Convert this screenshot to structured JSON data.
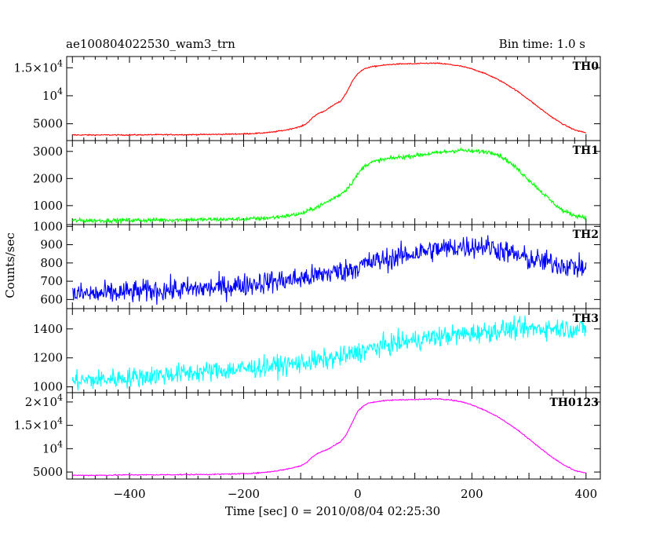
{
  "header": {
    "title": "ae100804022530_wam3_trn",
    "bin_time": "Bin time: 1.0 s"
  },
  "chart_data": {
    "type": "line",
    "xlabel": "Time [sec] 0 = 2010/08/04 02:25:30",
    "ylabel": "Counts/sec",
    "xlim": [
      -510,
      425
    ],
    "xticks": [
      -400,
      -200,
      0,
      200,
      400
    ],
    "x_tick_labels": [
      "−400",
      "−200",
      "0",
      "200",
      "400"
    ],
    "x": [
      -500,
      -450,
      -400,
      -350,
      -300,
      -250,
      -200,
      -175,
      -150,
      -125,
      -100,
      -90,
      -80,
      -70,
      -60,
      -50,
      -40,
      -30,
      -20,
      -10,
      0,
      10,
      20,
      40,
      60,
      80,
      100,
      120,
      140,
      160,
      180,
      200,
      220,
      240,
      260,
      280,
      300,
      320,
      340,
      360,
      380,
      400
    ],
    "panels": [
      {
        "name": "TH0",
        "color": "#ff0000",
        "ylim": [
          2000,
          17000
        ],
        "yticks": [
          5000,
          10000,
          15000
        ],
        "ytick_labels": [
          {
            "base": "5000"
          },
          {
            "base": "10",
            "exp": "4"
          },
          {
            "base": "1.5×10",
            "exp": "4"
          }
        ],
        "noise": 70,
        "values": [
          3000,
          3000,
          3000,
          3050,
          3050,
          3100,
          3200,
          3300,
          3500,
          3900,
          4500,
          5000,
          6000,
          6800,
          7200,
          7800,
          8500,
          9000,
          10500,
          12500,
          14000,
          14700,
          15100,
          15400,
          15600,
          15700,
          15700,
          15800,
          15800,
          15600,
          15300,
          14800,
          14100,
          13200,
          12100,
          10800,
          9300,
          7700,
          6200,
          4900,
          3900,
          3400
        ]
      },
      {
        "name": "TH1",
        "color": "#00ff00",
        "ylim": [
          300,
          3400
        ],
        "yticks": [
          1000,
          2000,
          3000
        ],
        "ytick_labels": [
          {
            "base": "1000"
          },
          {
            "base": "2000"
          },
          {
            "base": "3000"
          }
        ],
        "noise": 55,
        "values": [
          450,
          450,
          460,
          470,
          480,
          490,
          500,
          520,
          560,
          620,
          700,
          780,
          880,
          960,
          1060,
          1180,
          1300,
          1420,
          1600,
          1850,
          2150,
          2420,
          2570,
          2680,
          2750,
          2800,
          2850,
          2900,
          2950,
          3000,
          3050,
          3000,
          3000,
          2950,
          2700,
          2350,
          1950,
          1550,
          1150,
          800,
          640,
          560
        ]
      },
      {
        "name": "TH2",
        "color": "#0000ff",
        "ylim": [
          550,
          1010
        ],
        "yticks": [
          600,
          700,
          800,
          900,
          1000
        ],
        "ytick_labels": [
          {
            "base": "600"
          },
          {
            "base": "700"
          },
          {
            "base": "800"
          },
          {
            "base": "900"
          },
          {
            "base": "1000"
          }
        ],
        "noise": 45,
        "values": [
          630,
          630,
          640,
          650,
          655,
          665,
          680,
          690,
          700,
          705,
          715,
          720,
          725,
          730,
          740,
          745,
          750,
          755,
          760,
          770,
          780,
          790,
          800,
          815,
          825,
          840,
          855,
          865,
          875,
          880,
          890,
          890,
          895,
          880,
          860,
          840,
          820,
          810,
          800,
          790,
          780,
          770
        ]
      },
      {
        "name": "TH3",
        "color": "#00ffff",
        "ylim": [
          960,
          1540
        ],
        "yticks": [
          1000,
          1200,
          1400
        ],
        "ytick_labels": [
          {
            "base": "1000"
          },
          {
            "base": "1200"
          },
          {
            "base": "1400"
          }
        ],
        "noise": 50,
        "values": [
          1040,
          1050,
          1065,
          1080,
          1095,
          1110,
          1125,
          1135,
          1145,
          1150,
          1165,
          1170,
          1175,
          1180,
          1185,
          1190,
          1200,
          1205,
          1215,
          1225,
          1240,
          1250,
          1260,
          1280,
          1295,
          1310,
          1320,
          1335,
          1345,
          1355,
          1360,
          1370,
          1380,
          1390,
          1395,
          1400,
          1400,
          1405,
          1405,
          1405,
          1400,
          1400
        ]
      },
      {
        "name": "TH0123",
        "color": "#ff00ff",
        "ylim": [
          3500,
          22000
        ],
        "yticks": [
          5000,
          10000,
          15000,
          20000
        ],
        "ytick_labels": [
          {
            "base": "5000"
          },
          {
            "base": "10",
            "exp": "4"
          },
          {
            "base": "1.5×10",
            "exp": "4"
          },
          {
            "base": "2×10",
            "exp": "4"
          }
        ],
        "noise": 80,
        "values": [
          4300,
          4300,
          4400,
          4400,
          4450,
          4500,
          4650,
          4800,
          5100,
          5600,
          6300,
          7000,
          8200,
          9000,
          9500,
          10000,
          10800,
          11500,
          13000,
          15500,
          18000,
          19200,
          19800,
          20200,
          20400,
          20500,
          20500,
          20600,
          20700,
          20500,
          20100,
          19400,
          18400,
          17200,
          15700,
          14000,
          12100,
          10100,
          8200,
          6600,
          5300,
          4800
        ]
      }
    ]
  }
}
